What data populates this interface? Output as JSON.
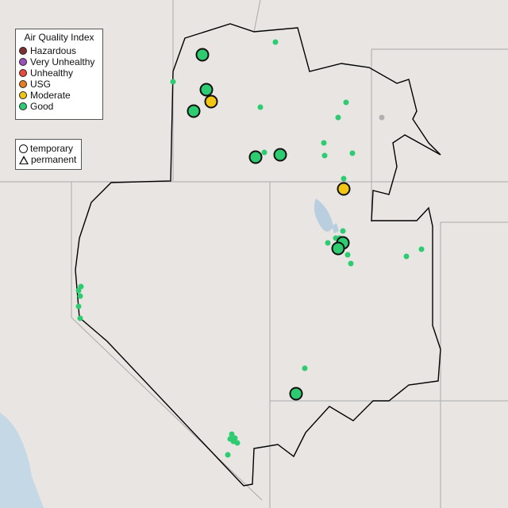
{
  "legend": {
    "title": "Air Quality Index",
    "categories": [
      {
        "label": "Hazardous",
        "color": "#7e2f2f"
      },
      {
        "label": "Very Unhealthy",
        "color": "#9b4fb8"
      },
      {
        "label": "Unhealthy",
        "color": "#e84a3a"
      },
      {
        "label": "USG",
        "color": "#e97c1c"
      },
      {
        "label": "Moderate",
        "color": "#f2c613"
      },
      {
        "label": "Good",
        "color": "#2dcc70"
      }
    ],
    "shapes": [
      {
        "label": "temporary",
        "icon": "circle"
      },
      {
        "label": "permanent",
        "icon": "triangle"
      }
    ]
  },
  "map": {
    "land_color": "#e9e5e2",
    "water_color": "#b9cfe0",
    "ocean_color": "#c4d8e6",
    "no_data_color": "#b0b0b0"
  }
}
